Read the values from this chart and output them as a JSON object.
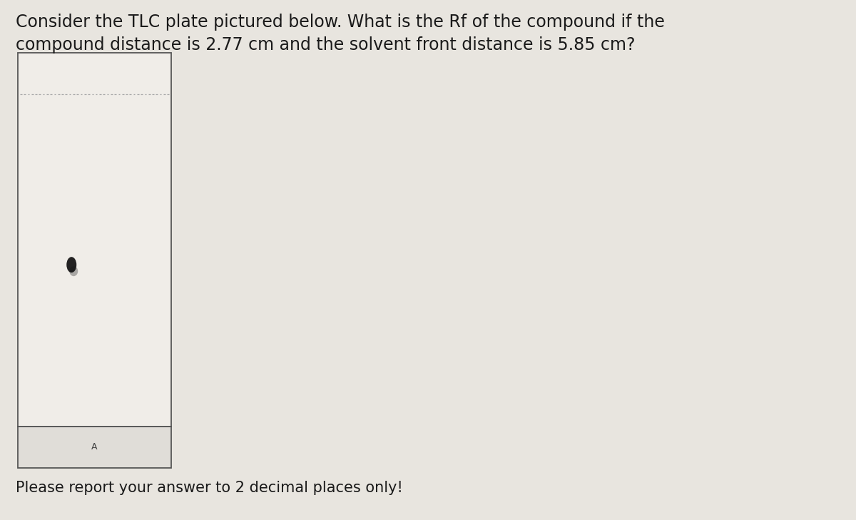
{
  "title_line1": "Consider the TLC plate pictured below. What is the Rf of the compound if the",
  "title_line2": "compound distance is 2.77 cm and the solvent front distance is 5.85 cm?",
  "footer_text": "Please report your answer to 2 decimal places only!",
  "background_color": "#e8e5df",
  "plate_bg_color": "#f0ede8",
  "plate_bottom_bg": "#e0ddd8",
  "plate_border_color": "#555555",
  "label_A_text": "A",
  "title_fontsize": 17,
  "footer_fontsize": 15,
  "compound_distance": 2.77,
  "solvent_distance": 5.85,
  "dashed_line_color": "#aaaaaa",
  "spot_color": "#111111",
  "spot_shadow_color": "#555555"
}
